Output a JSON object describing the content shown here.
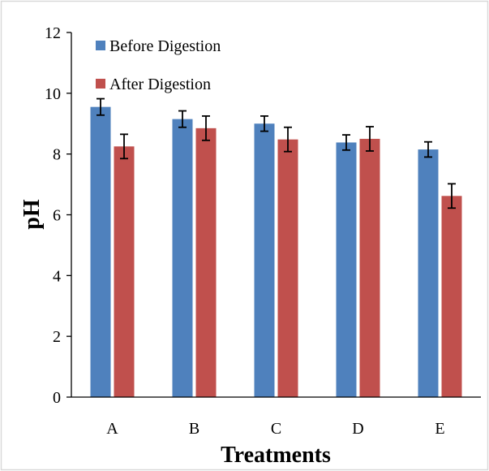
{
  "chart_data": {
    "type": "bar",
    "categories": [
      "A",
      "B",
      "C",
      "D",
      "E"
    ],
    "series": [
      {
        "name": "Before Digestion",
        "values": [
          9.55,
          9.15,
          9.0,
          8.38,
          8.15
        ],
        "errors": [
          0.27,
          0.27,
          0.25,
          0.25,
          0.25
        ],
        "color": "#4f81bd"
      },
      {
        "name": "After Digestion",
        "values": [
          8.25,
          8.85,
          8.48,
          8.5,
          6.62
        ],
        "errors": [
          0.4,
          0.4,
          0.4,
          0.4,
          0.4
        ],
        "color": "#c0504d"
      }
    ],
    "title": "",
    "xlabel": "Treatments",
    "ylabel": "pH",
    "ylim": [
      0,
      12
    ],
    "yticks": [
      0,
      2,
      4,
      6,
      8,
      10,
      12
    ],
    "grid": false,
    "legend_position": "top-left"
  },
  "colors": {
    "border": "#d9d9d9",
    "axis": "#000000",
    "error_bar": "#000000"
  }
}
